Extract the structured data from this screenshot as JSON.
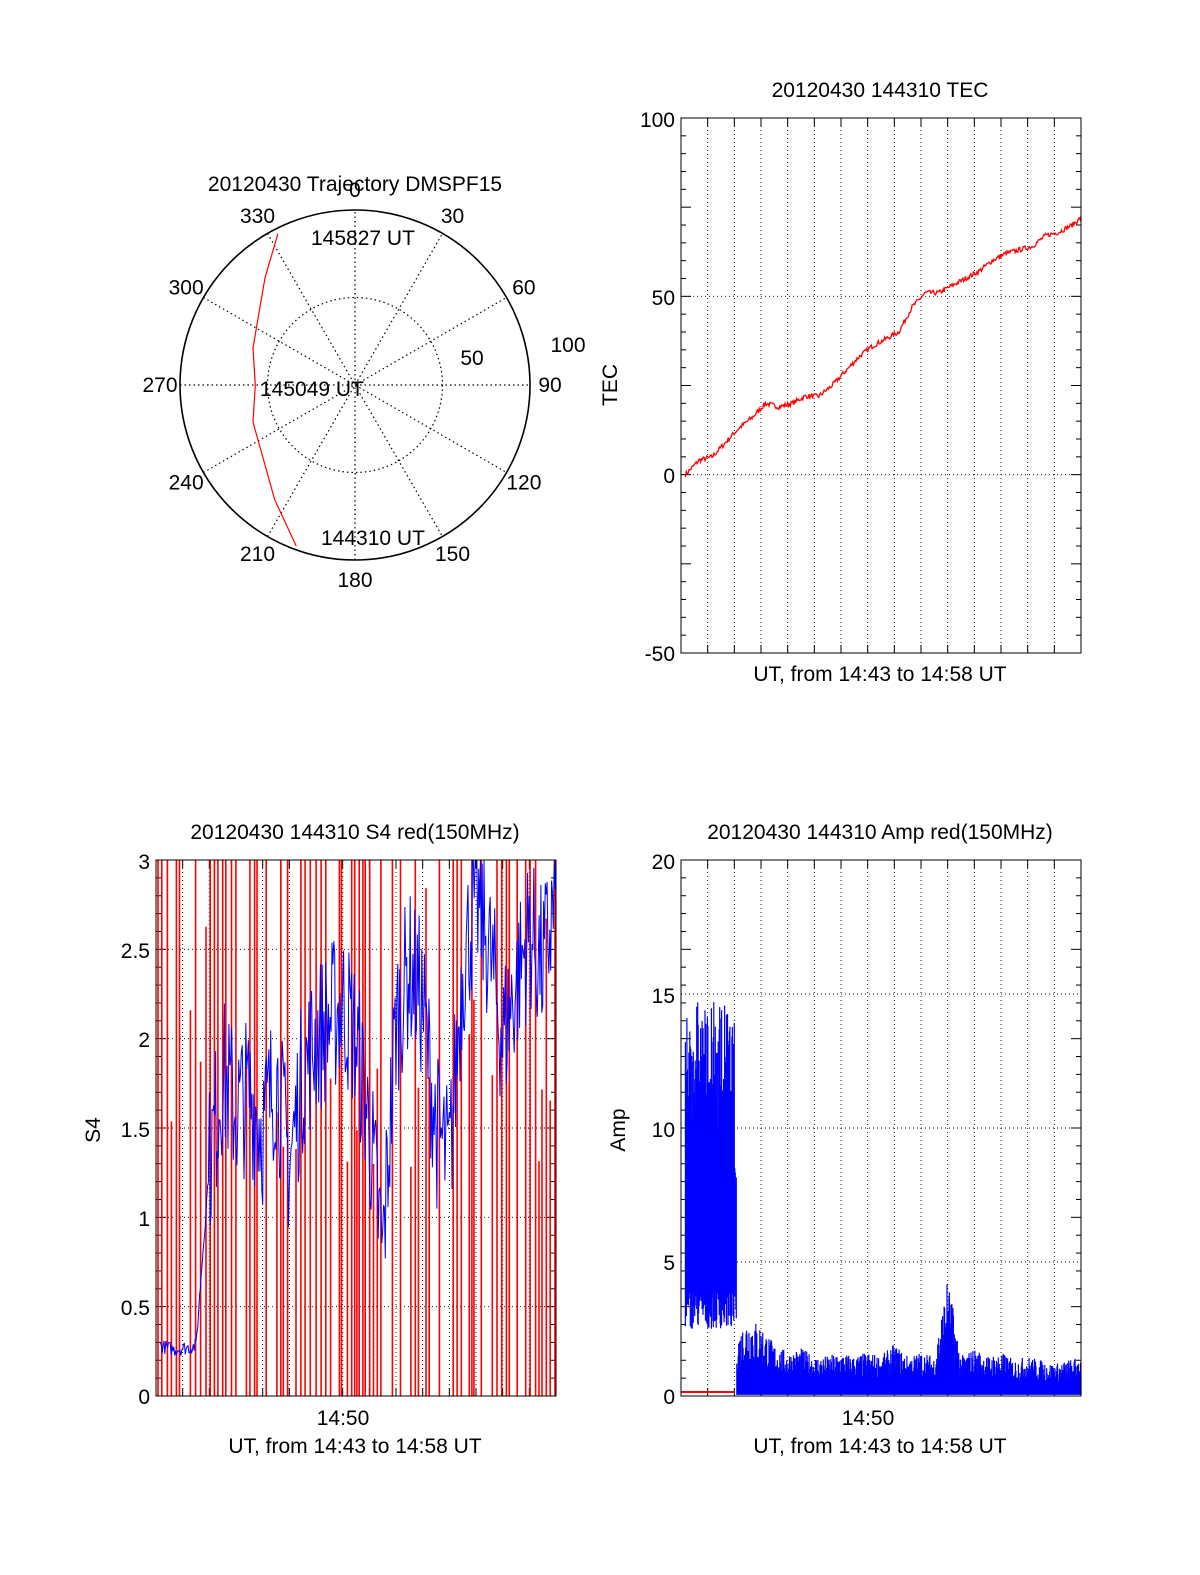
{
  "colors": {
    "red": "#ff0000",
    "blue": "#0000ff",
    "axis": "#000000",
    "grid": "#000000"
  },
  "chart_data": [
    {
      "id": "polar",
      "type": "scatter",
      "title": "20120430 Trajectory DMSPF15",
      "angle_labels": [
        "0",
        "30",
        "60",
        "90",
        "120",
        "150",
        "180",
        "210",
        "240",
        "270",
        "300",
        "330"
      ],
      "radial_labels": [
        "50",
        "100"
      ],
      "r_max": 100,
      "path": {
        "azimuth_deg": [
          200,
          215,
          250,
          270,
          290,
          320,
          333
        ],
        "radius": [
          98,
          80,
          62,
          57,
          62,
          80,
          97
        ]
      },
      "annotations": [
        {
          "text": "145827 UT",
          "azimuth_deg": 333,
          "radius": 97
        },
        {
          "text": "145049 UT",
          "azimuth_deg": 270,
          "radius": 0
        },
        {
          "text": "144310 UT",
          "azimuth_deg": 200,
          "radius": 98
        }
      ]
    },
    {
      "id": "tec",
      "type": "line",
      "title": "20120430 144310 TEC",
      "xlabel": "UT, from 14:43 to 14:58 UT",
      "ylabel": "TEC",
      "xlim": [
        "14:43",
        "14:58"
      ],
      "ylim": [
        -50,
        100
      ],
      "yticks": [
        "100",
        "50",
        "0",
        "-50"
      ],
      "grid": true,
      "series": [
        {
          "color": "red",
          "x": [
            "14:43:10",
            "14:43:40",
            "14:44:10",
            "14:44:40",
            "14:45:10",
            "14:45:40",
            "14:46:10",
            "14:46:40",
            "14:47:10",
            "14:47:40",
            "14:48:10",
            "14:48:40",
            "14:49:10",
            "14:49:40",
            "14:50:10",
            "14:50:40",
            "14:51:10",
            "14:51:40",
            "14:52:10",
            "14:52:40",
            "14:53:10",
            "14:53:40",
            "14:54:10",
            "14:54:40",
            "14:55:10",
            "14:55:40",
            "14:56:10",
            "14:56:40",
            "14:57:10",
            "14:57:40",
            "14:58:00"
          ],
          "y": [
            0,
            4,
            5,
            9,
            13,
            16,
            20,
            19,
            20,
            22,
            22,
            25,
            29,
            33,
            36,
            38,
            40,
            47,
            51,
            51,
            53,
            55,
            57,
            60,
            62,
            63,
            64,
            67,
            68,
            70,
            72
          ]
        }
      ]
    },
    {
      "id": "s4",
      "type": "line",
      "title": "20120430 144310 S4 red(150MHz)",
      "xlabel": "UT, from 14:43 to 14:58 UT",
      "ylabel": "S4",
      "xtick_label": "14:50",
      "xlim": [
        "14:43",
        "14:58"
      ],
      "ylim": [
        0,
        3
      ],
      "yticks": [
        "3",
        "2.5",
        "2",
        "1.5",
        "1",
        "0.5",
        "0"
      ],
      "grid": true,
      "series": [
        {
          "color": "blue",
          "x": [
            "14:43:10",
            "14:43:40",
            "14:44:10",
            "14:44:30",
            "14:45:00",
            "14:45:30",
            "14:46:00",
            "14:46:30",
            "14:47:00",
            "14:47:30",
            "14:48:00",
            "14:48:30",
            "14:49:00",
            "14:49:30",
            "14:50:00",
            "14:50:30",
            "14:51:00",
            "14:51:30",
            "14:52:00",
            "14:52:30",
            "14:53:00",
            "14:53:30",
            "14:54:00",
            "14:54:30",
            "14:55:00",
            "14:55:30",
            "14:56:00",
            "14:56:30",
            "14:57:00",
            "14:57:30",
            "14:58:00"
          ],
          "y": [
            0.28,
            0.26,
            0.27,
            0.28,
            1.3,
            1.8,
            1.6,
            1.7,
            1.5,
            1.8,
            1.3,
            1.8,
            2.0,
            2.1,
            2.2,
            2.0,
            1.5,
            0.8,
            2.1,
            2.4,
            2.2,
            1.5,
            1.3,
            2.4,
            2.8,
            2.5,
            2.0,
            2.3,
            2.6,
            2.4,
            2.8
          ]
        },
        {
          "color": "red",
          "x": [
            "14:43",
            "14:58"
          ],
          "y": [
            0,
            3
          ]
        }
      ]
    },
    {
      "id": "amp",
      "type": "line",
      "title": "20120430 144310 Amp red(150MHz)",
      "xlabel": "UT, from 14:43 to 14:58 UT",
      "ylabel": "Amp",
      "xtick_label": "14:50",
      "xlim": [
        "14:43",
        "14:58"
      ],
      "ylim": [
        0,
        20
      ],
      "yticks": [
        "20",
        "15",
        "10",
        "5",
        "0"
      ],
      "grid": true,
      "series": [
        {
          "color": "blue",
          "x": [
            "14:43:10",
            "14:43:30",
            "14:44:00",
            "14:44:30",
            "14:45:00",
            "14:45:05",
            "14:45:30",
            "14:46:00",
            "14:46:30",
            "14:47:00",
            "14:47:30",
            "14:48:00",
            "14:48:30",
            "14:49:00",
            "14:49:30",
            "14:50:00",
            "14:50:30",
            "14:51:00",
            "14:51:30",
            "14:52:00",
            "14:52:30",
            "14:53:00",
            "14:53:30",
            "14:54:00",
            "14:54:30",
            "14:55:00",
            "14:55:30",
            "14:56:00",
            "14:56:30",
            "14:57:00",
            "14:57:30",
            "14:58:00"
          ],
          "y": [
            8,
            9,
            8.5,
            9,
            8,
            1.5,
            2.0,
            1.8,
            1.3,
            1.1,
            1.2,
            1.0,
            1.0,
            1.1,
            1.0,
            1.1,
            1.0,
            1.3,
            1.0,
            1.1,
            1.0,
            3.0,
            1.0,
            1.2,
            1.0,
            1.1,
            0.9,
            1.0,
            0.9,
            0.8,
            0.9,
            1.0
          ]
        },
        {
          "color": "red",
          "x": [
            "14:43",
            "14:45"
          ],
          "y": [
            0.15,
            0.15
          ]
        }
      ]
    }
  ]
}
